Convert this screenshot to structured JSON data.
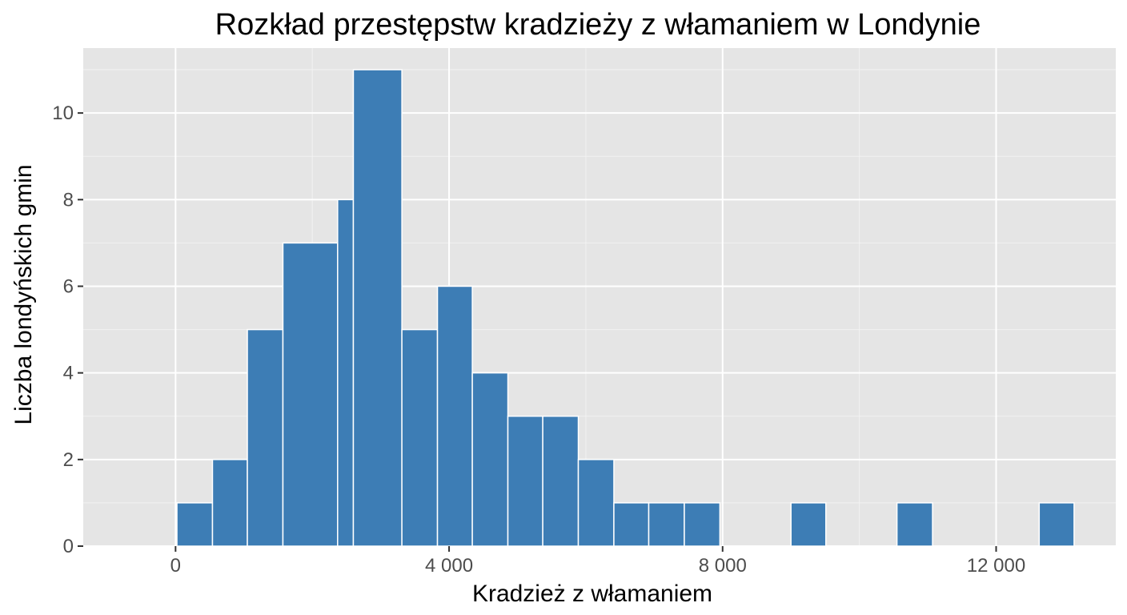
{
  "chart_data": {
    "type": "bar",
    "title": "Rozkład przestępstw kradzieży z włamaniem w Londynie",
    "xlabel": "Kradzież z włamaniem",
    "ylabel": "Liczba londyńskich gmin",
    "xlim": [
      -1350,
      13750
    ],
    "ylim": [
      0,
      11.5
    ],
    "x_ticks": [
      0,
      4000,
      8000,
      12000
    ],
    "x_tick_labels": [
      "0",
      "4 000",
      "8 000",
      "12 000"
    ],
    "y_ticks": [
      0,
      2,
      4,
      6,
      8,
      10
    ],
    "y_tick_labels": [
      "0",
      "2",
      "4",
      "6",
      "8",
      "10"
    ],
    "grid": true,
    "bins": [
      {
        "x0": 20,
        "x1": 540,
        "count": 1
      },
      {
        "x0": 540,
        "x1": 1050,
        "count": 2
      },
      {
        "x0": 1050,
        "x1": 1570,
        "count": 5
      },
      {
        "x0": 1570,
        "x1": 2370,
        "count": 7
      },
      {
        "x0": 2370,
        "x1": 2600,
        "count": 8
      },
      {
        "x0": 2600,
        "x1": 3310,
        "count": 11
      },
      {
        "x0": 3310,
        "x1": 3830,
        "count": 5
      },
      {
        "x0": 3830,
        "x1": 4340,
        "count": 6
      },
      {
        "x0": 4340,
        "x1": 4860,
        "count": 4
      },
      {
        "x0": 4860,
        "x1": 5370,
        "count": 3
      },
      {
        "x0": 5370,
        "x1": 5890,
        "count": 3
      },
      {
        "x0": 5890,
        "x1": 6410,
        "count": 2
      },
      {
        "x0": 6410,
        "x1": 6920,
        "count": 1
      },
      {
        "x0": 6920,
        "x1": 7440,
        "count": 1
      },
      {
        "x0": 7440,
        "x1": 7960,
        "count": 1
      },
      {
        "x0": 9000,
        "x1": 9510,
        "count": 1
      },
      {
        "x0": 10550,
        "x1": 11070,
        "count": 1
      },
      {
        "x0": 12630,
        "x1": 13140,
        "count": 1
      }
    ],
    "colors": {
      "bar": "#3d7db5",
      "panel": "#e5e5e5",
      "grid": "#ffffff"
    }
  }
}
